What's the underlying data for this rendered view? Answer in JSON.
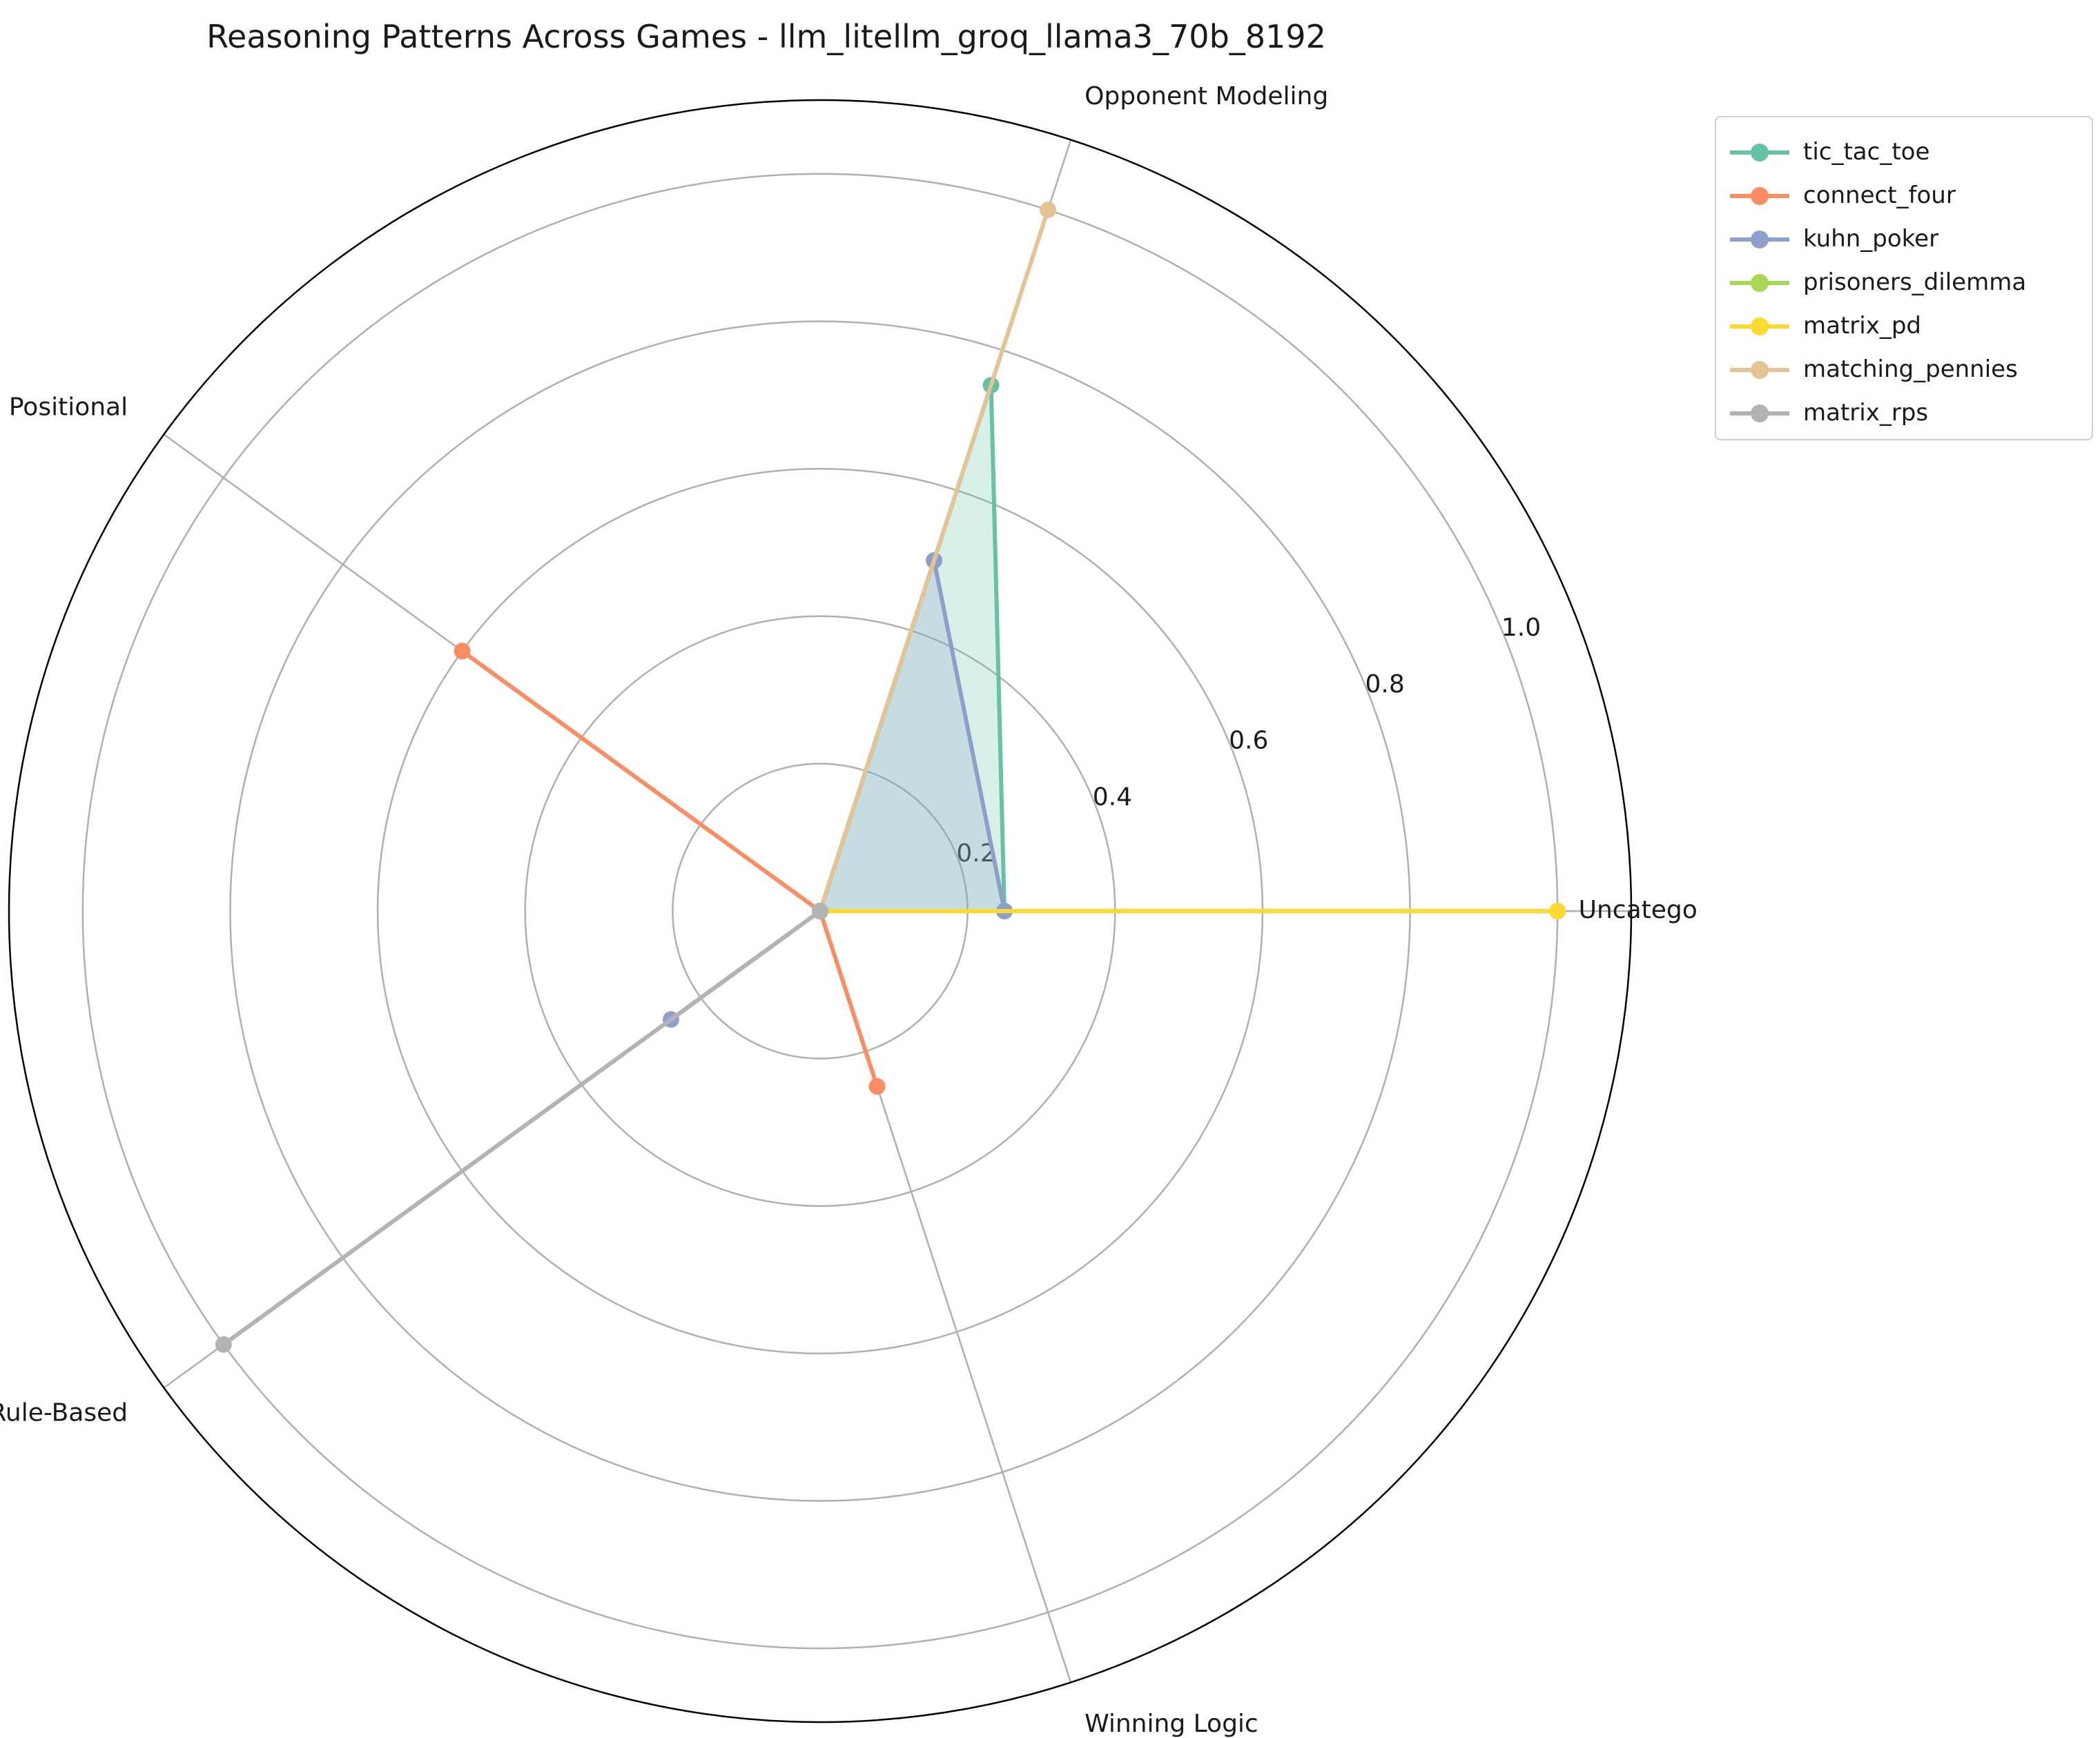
{
  "chart_data": {
    "type": "radar",
    "title": "Reasoning Patterns Across Games - llm_litellm_groq_llama3_70b_8192",
    "axes": [
      "Uncategorized",
      "Opponent Modeling",
      "Positional",
      "Rule-Based",
      "Winning Logic"
    ],
    "rlim": [
      0,
      1.1
    ],
    "r_ticks": [
      "0.2",
      "0.4",
      "0.6",
      "0.8",
      "1.0"
    ],
    "r_tick_values": [
      0.2,
      0.4,
      0.6,
      0.8,
      1.0
    ],
    "grid": true,
    "legend_position": "top-right, outside plot",
    "series": [
      {
        "name": "tic_tac_toe",
        "color": "#66c2a5",
        "values": [
          0.25,
          0.75,
          0.0,
          0.0,
          0.0
        ],
        "filled": true
      },
      {
        "name": "connect_four",
        "color": "#fc8d62",
        "values": [
          0.0,
          0.0,
          0.6,
          0.0,
          0.25
        ],
        "filled": false
      },
      {
        "name": "kuhn_poker",
        "color": "#8da0cb",
        "values": [
          0.25,
          0.5,
          0.0,
          0.25,
          0.0
        ],
        "filled": true
      },
      {
        "name": "prisoners_dilemma",
        "color": "#a6d854",
        "values": [
          1.0,
          0.0,
          0.0,
          0.0,
          0.0
        ],
        "filled": false
      },
      {
        "name": "matrix_pd",
        "color": "#ffd92f",
        "values": [
          1.0,
          0.0,
          0.0,
          0.0,
          0.0
        ],
        "filled": false
      },
      {
        "name": "matching_pennies",
        "color": "#e5c494",
        "values": [
          0.0,
          1.0,
          0.0,
          0.0,
          0.0
        ],
        "filled": true
      },
      {
        "name": "matrix_rps",
        "color": "#b3b3b3",
        "values": [
          0.0,
          0.0,
          0.0,
          1.0,
          0.0
        ],
        "filled": false
      }
    ]
  }
}
